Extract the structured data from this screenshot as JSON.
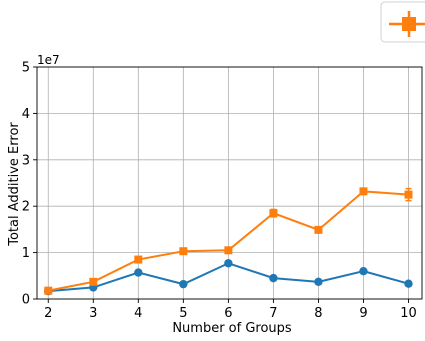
{
  "chart_data": {
    "type": "line",
    "title": "",
    "xlabel": "Number of Groups",
    "ylabel": "Total Additive Error",
    "y_offset_label": "1e7",
    "x": [
      2,
      3,
      4,
      5,
      6,
      7,
      8,
      9,
      10
    ],
    "xlim": [
      1.75,
      10.3
    ],
    "ylim": [
      0,
      5
    ],
    "x_ticks": [
      "2",
      "3",
      "4",
      "5",
      "6",
      "7",
      "8",
      "9",
      "10"
    ],
    "y_ticks": [
      "0",
      "1",
      "2",
      "3",
      "4",
      "5"
    ],
    "grid": true,
    "legend": "top-right, partially cut off",
    "series": [
      {
        "color": "#1f77b4",
        "marker": "circle",
        "values": [
          0.17,
          0.25,
          0.57,
          0.32,
          0.77,
          0.45,
          0.37,
          0.6,
          0.33
        ]
      },
      {
        "color": "#ff7f0e",
        "marker": "square",
        "values": [
          0.18,
          0.37,
          0.85,
          1.03,
          1.05,
          1.85,
          1.49,
          2.32,
          2.25
        ],
        "error": [
          0.02,
          0.03,
          0.05,
          0.04,
          0.04,
          0.08,
          0.05,
          0.06,
          0.13
        ]
      }
    ]
  }
}
